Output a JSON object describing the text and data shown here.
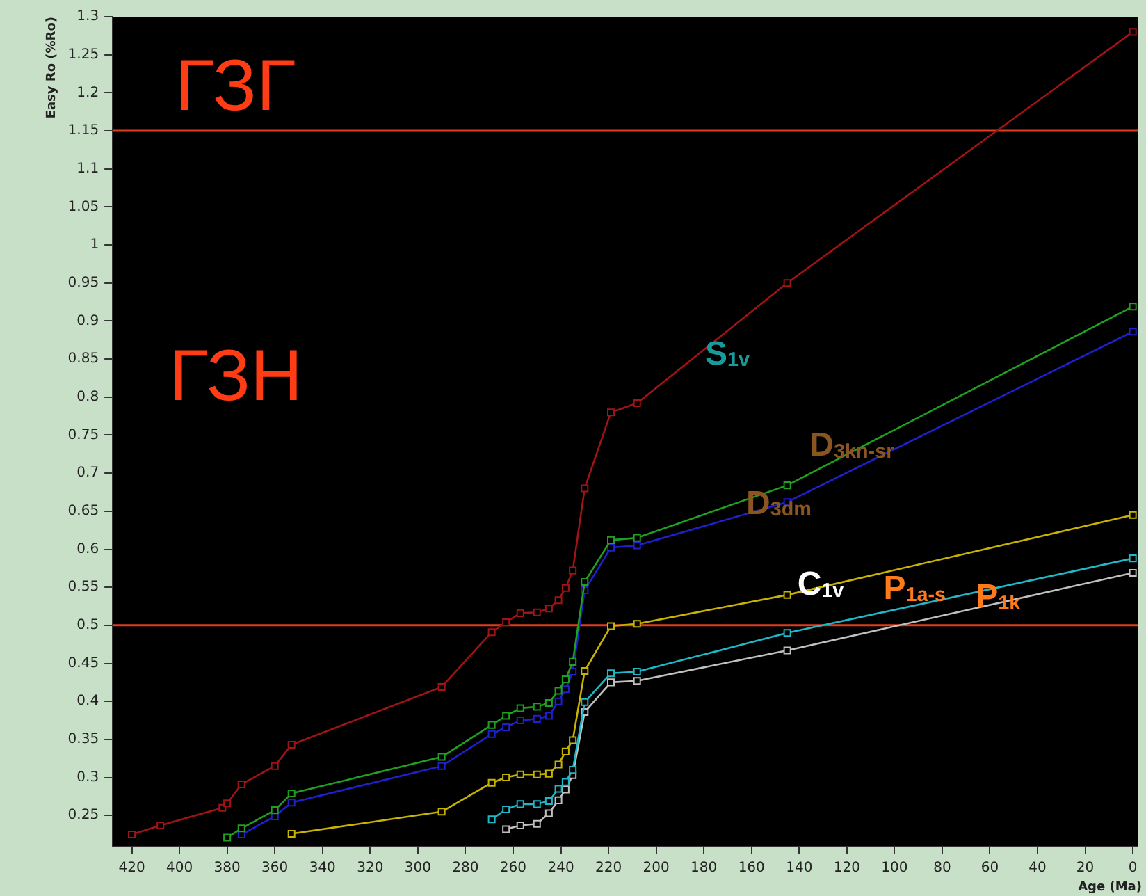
{
  "chart_data": {
    "type": "line",
    "xlabel": "Age (Ma)",
    "ylabel": "Easy Ro (%Ro)",
    "xlim": [
      428,
      -2
    ],
    "xticks": [
      420,
      400,
      380,
      360,
      340,
      320,
      300,
      280,
      260,
      240,
      220,
      200,
      180,
      160,
      140,
      120,
      100,
      80,
      60,
      40,
      20,
      0
    ],
    "ylim": [
      0.21,
      1.3
    ],
    "yticks": [
      0.25,
      0.3,
      0.35,
      0.4,
      0.45,
      0.5,
      0.55,
      0.6,
      0.65,
      0.7,
      0.75,
      0.8,
      0.85,
      0.9,
      0.95,
      1,
      1.05,
      1.1,
      1.15,
      1.2,
      1.25,
      1.3
    ],
    "grid": false,
    "legend": false,
    "marker": "square",
    "line_style": "solid",
    "series": [
      {
        "color": "#a01414",
        "x": [
          420,
          408,
          382,
          380,
          374,
          360,
          353,
          290,
          269,
          263,
          257,
          250,
          245,
          241,
          238,
          235,
          230,
          219,
          208,
          145,
          0
        ],
        "values": [
          0.225,
          0.237,
          0.26,
          0.266,
          0.291,
          0.315,
          0.343,
          0.419,
          0.491,
          0.504,
          0.516,
          0.517,
          0.522,
          0.533,
          0.549,
          0.572,
          0.68,
          0.78,
          0.792,
          0.95,
          1.28
        ]
      },
      {
        "color": "#20a020",
        "x": [
          380,
          374,
          360,
          353,
          290,
          269,
          263,
          257,
          250,
          245,
          241,
          238,
          235,
          230,
          219,
          208,
          145,
          0
        ],
        "values": [
          0.221,
          0.233,
          0.257,
          0.279,
          0.327,
          0.369,
          0.381,
          0.391,
          0.393,
          0.398,
          0.414,
          0.429,
          0.452,
          0.557,
          0.612,
          0.615,
          0.684,
          0.919
        ]
      },
      {
        "color": "#2020d0",
        "x": [
          374,
          360,
          353,
          290,
          269,
          263,
          257,
          250,
          245,
          241,
          238,
          235,
          230,
          219,
          208,
          145,
          0
        ],
        "values": [
          0.225,
          0.249,
          0.267,
          0.315,
          0.357,
          0.366,
          0.375,
          0.377,
          0.381,
          0.4,
          0.416,
          0.439,
          0.546,
          0.602,
          0.605,
          0.662,
          0.886
        ]
      },
      {
        "color": "#c8b400",
        "x": [
          353,
          290,
          269,
          263,
          257,
          250,
          245,
          241,
          238,
          235,
          230,
          219,
          208,
          145,
          0
        ],
        "values": [
          0.226,
          0.255,
          0.293,
          0.3,
          0.304,
          0.304,
          0.305,
          0.317,
          0.334,
          0.349,
          0.44,
          0.499,
          0.502,
          0.54,
          0.645
        ]
      },
      {
        "color": "#20b8c8",
        "x": [
          269,
          263,
          257,
          250,
          245,
          241,
          238,
          235,
          230,
          219,
          208,
          145,
          0
        ],
        "values": [
          0.245,
          0.258,
          0.265,
          0.265,
          0.269,
          0.285,
          0.294,
          0.31,
          0.399,
          0.437,
          0.439,
          0.49,
          0.588
        ]
      },
      {
        "color": "#c0c0c0",
        "x": [
          263,
          257,
          250,
          245,
          241,
          238,
          235,
          230,
          219,
          208,
          145,
          0
        ],
        "values": [
          0.232,
          0.237,
          0.239,
          0.253,
          0.27,
          0.284,
          0.303,
          0.386,
          0.425,
          0.427,
          0.467,
          0.569
        ]
      }
    ],
    "ref_lines": [
      {
        "axis": "y",
        "value": 1.15,
        "color": "#e03c1e"
      },
      {
        "axis": "y",
        "value": 0.5,
        "color": "#e03c1e"
      }
    ],
    "annotations": [
      "ГЗГ",
      "ГЗН",
      "S$_{1v}$",
      "D$_{3kn-sr}$",
      "D$_{3dm}$",
      "C$_{1v}$",
      "P$_{1a-s}$",
      "P$_{1k}$"
    ]
  }
}
